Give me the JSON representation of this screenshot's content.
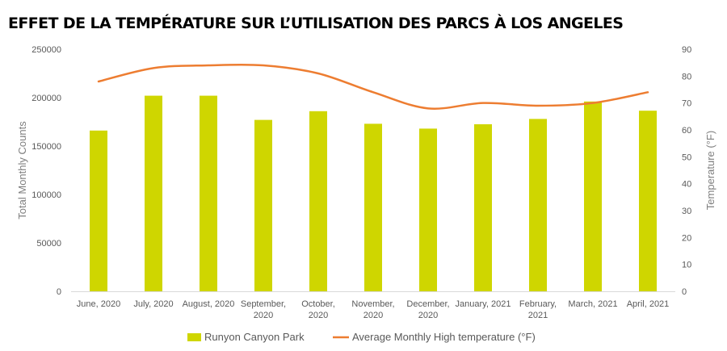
{
  "chart_data": {
    "type": "bar",
    "title": "EFFET DE LA TEMPÉRATURE SUR L’UTILISATION DES PARCS À LOS ANGELES",
    "categories": [
      [
        "June, 2020"
      ],
      [
        "July, 2020"
      ],
      [
        "August, 2020"
      ],
      [
        "September,",
        "2020"
      ],
      [
        "October,",
        "2020"
      ],
      [
        "November,",
        "2020"
      ],
      [
        "December,",
        "2020"
      ],
      [
        "January, 2021"
      ],
      [
        "February,",
        "2021"
      ],
      [
        "March, 2021"
      ],
      [
        "April, 2021"
      ]
    ],
    "series": [
      {
        "name": "Runyon Canyon Park",
        "type": "bar",
        "axis": "left",
        "color": "#cfd600",
        "values": [
          166000,
          202000,
          202000,
          177000,
          186000,
          173000,
          168000,
          172500,
          178000,
          196000,
          186500
        ]
      },
      {
        "name": "Average Monthly High temperature (°F)",
        "type": "line",
        "axis": "right",
        "color": "#ed7d31",
        "values": [
          78,
          83,
          84,
          84,
          81,
          74,
          68,
          70,
          69,
          70,
          74
        ]
      }
    ],
    "ylabel": "Total Monthly Counts",
    "y2label": "Temperature (°F)",
    "ylim": [
      0,
      250000
    ],
    "yticks": [
      "0",
      "50000",
      "100000",
      "150000",
      "200000",
      "250000"
    ],
    "y2lim": [
      0,
      90
    ],
    "y2ticks": [
      "0",
      "10",
      "20",
      "30",
      "40",
      "50",
      "60",
      "70",
      "80",
      "90"
    ],
    "grid": false,
    "legend": "bottom"
  }
}
